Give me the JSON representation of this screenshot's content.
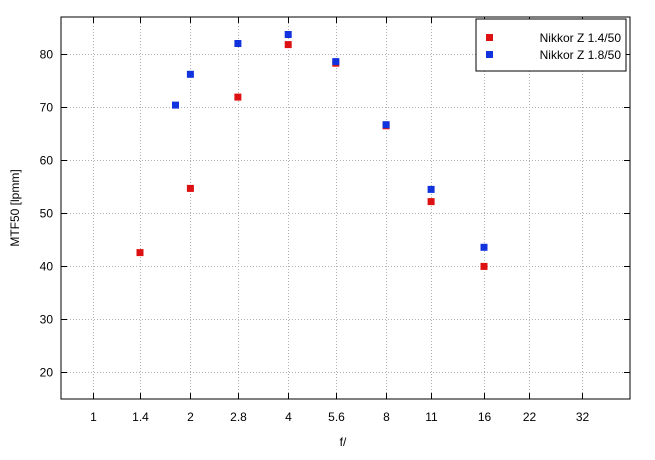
{
  "chart_data": {
    "type": "scatter",
    "title": "",
    "xlabel": "f/",
    "ylabel": "MTF50 [lpmm]",
    "x_scale": "log2",
    "x_ticks": [
      "1",
      "1.4",
      "2",
      "2.8",
      "4",
      "5.6",
      "8",
      "11",
      "16",
      "22",
      "32"
    ],
    "y_ticks": [
      20,
      30,
      40,
      50,
      60,
      70,
      80
    ],
    "xlim": [
      0.8,
      45
    ],
    "ylim": [
      15,
      87
    ],
    "grid": true,
    "legend_position": "top-right",
    "series": [
      {
        "name": "Nikkor Z 1.4/50",
        "color": "#dd1111",
        "marker": "square",
        "x": [
          1.4,
          2,
          2.8,
          4,
          5.6,
          8,
          11,
          16
        ],
        "y": [
          42.6,
          54.7,
          71.9,
          81.8,
          78.3,
          66.5,
          52.2,
          40.0
        ]
      },
      {
        "name": "Nikkor Z 1.8/50",
        "color": "#1133dd",
        "marker": "square",
        "x": [
          1.8,
          2,
          2.8,
          4,
          5.6,
          8,
          11,
          16
        ],
        "y": [
          70.4,
          76.2,
          82.0,
          83.7,
          78.6,
          66.7,
          54.5,
          43.6
        ]
      }
    ]
  }
}
